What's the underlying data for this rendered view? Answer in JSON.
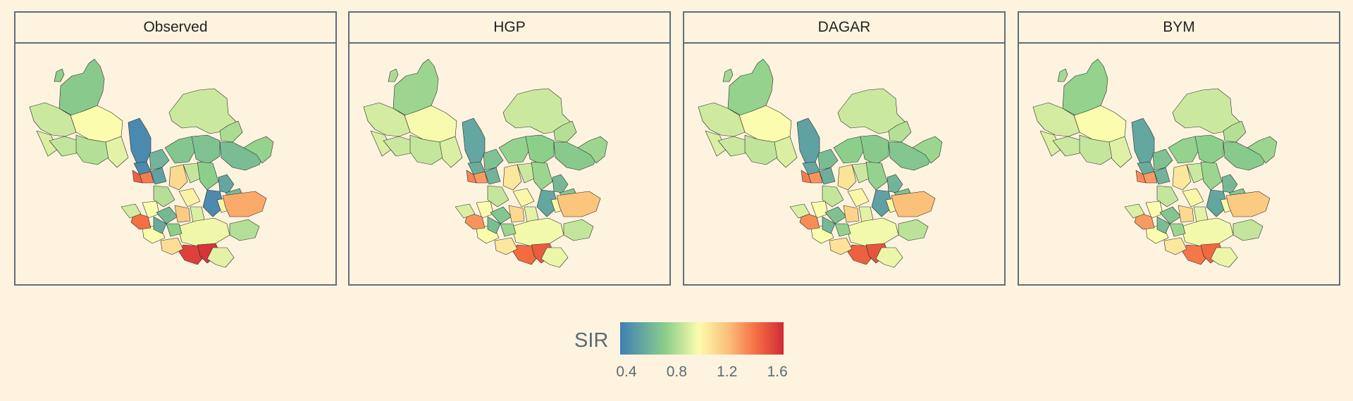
{
  "panels": [
    {
      "title": "Observed",
      "variant": 0
    },
    {
      "title": "HGP",
      "variant": 1
    },
    {
      "title": "DAGAR",
      "variant": 2
    },
    {
      "title": "BYM",
      "variant": 3
    }
  ],
  "legend": {
    "title": "SIR",
    "ticks": [
      "0.4",
      "0.8",
      "1.2",
      "1.6"
    ],
    "tick_values": [
      0.4,
      0.8,
      1.2,
      1.6
    ],
    "range": [
      0.35,
      1.65
    ],
    "colors": [
      "#3f7fb5",
      "#8ccf8a",
      "#fbfcad",
      "#fbc07a",
      "#f36b42",
      "#d22a35"
    ]
  }
}
